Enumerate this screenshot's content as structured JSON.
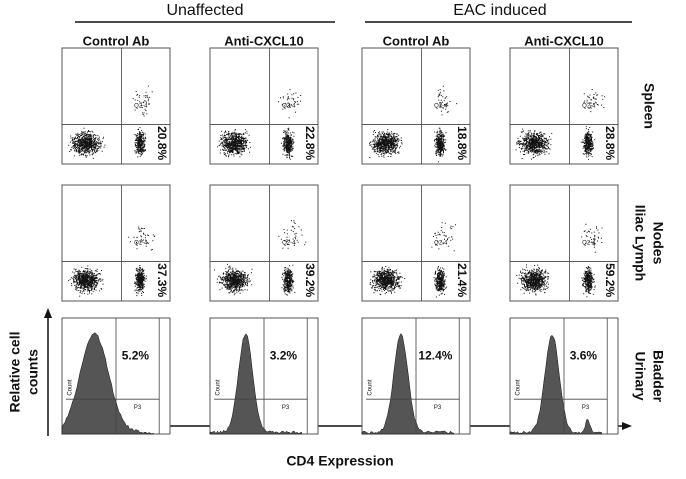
{
  "header": {
    "groups": [
      "Unaffected",
      "EAC induced"
    ],
    "columns": [
      "Control Ab",
      "Anti-CXCL10",
      "Control Ab",
      "Anti-CXCL10"
    ]
  },
  "rows": [
    {
      "label": [
        "Spleen"
      ],
      "percentages": [
        "20.8%",
        "22.8%",
        "18.8%",
        "28.8%"
      ]
    },
    {
      "label": [
        "Iliac Lymph",
        "Nodes"
      ],
      "percentages": [
        "37.3%",
        "39.2%",
        "21.4%",
        "59.2%"
      ]
    },
    {
      "label": [
        "Urinary",
        "Bladder"
      ],
      "percentages": [
        "5.2%",
        "3.2%",
        "12.4%",
        "3.6%"
      ]
    }
  ],
  "axes": {
    "y": [
      "Relative cell",
      "counts"
    ],
    "x": "CD4 Expression"
  },
  "gate_labels": {
    "quadrant": "Q2-4",
    "histogram": "P3",
    "count": "Count"
  }
}
